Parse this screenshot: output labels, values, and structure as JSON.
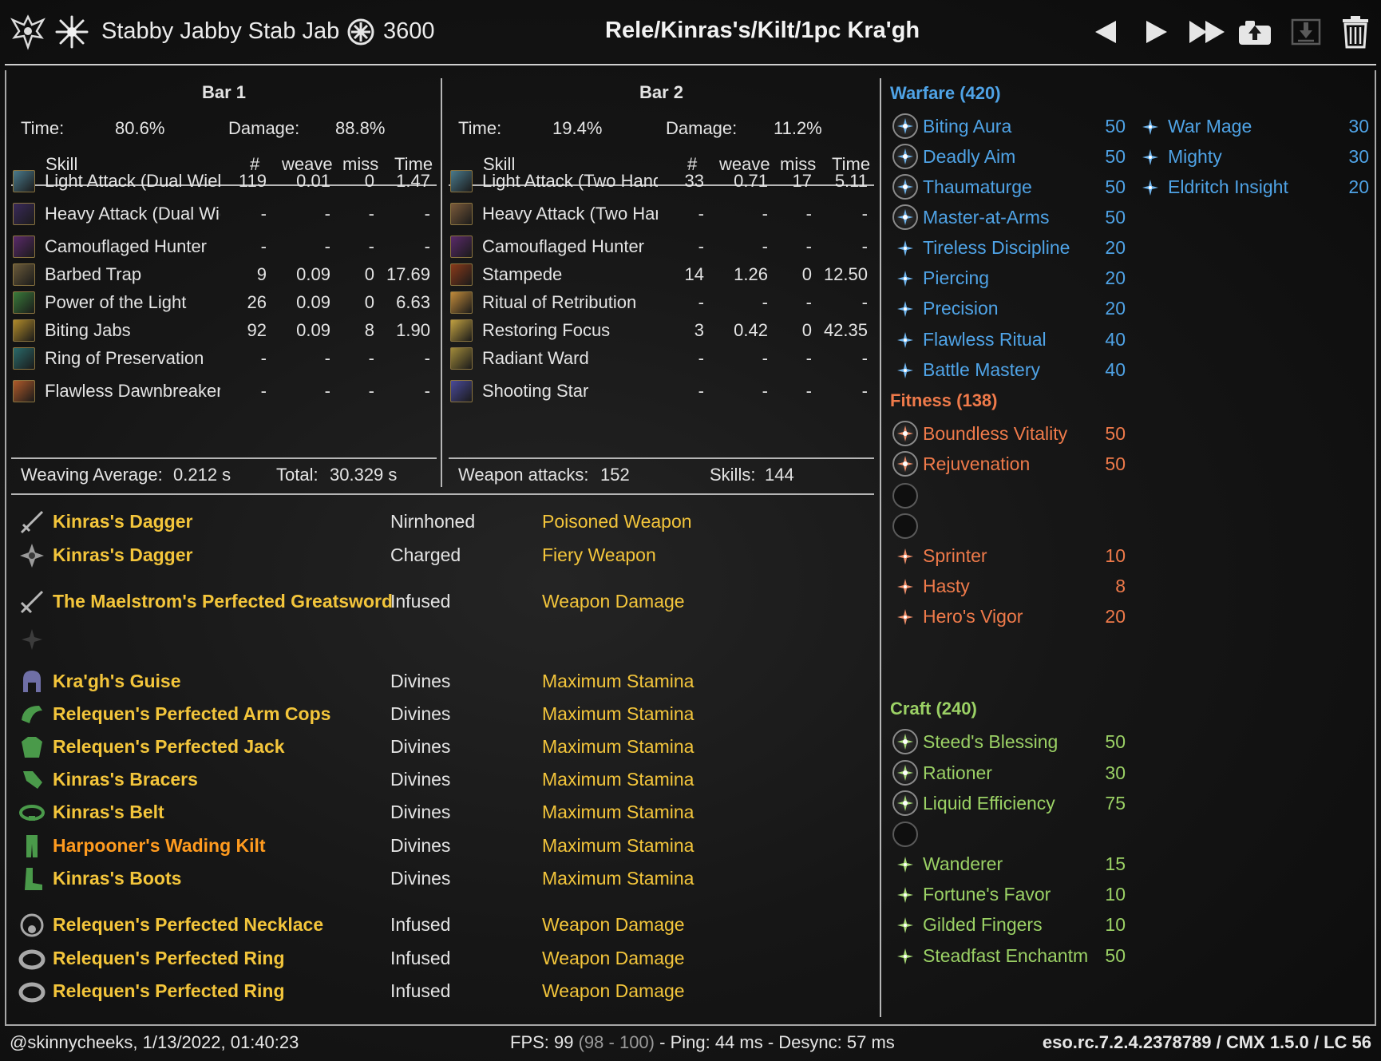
{
  "header": {
    "character_name": "Stabby Jabby Stab Jab",
    "cp_total": "3600",
    "fight_title": "Rele/Kinras's/Kilt/1pc Kra'gh",
    "icons": [
      "class-icon",
      "champion-icon",
      "champion-points-icon",
      "previous-icon",
      "next-icon",
      "last-icon",
      "save-icon",
      "load-icon",
      "delete-icon"
    ]
  },
  "bar1": {
    "title": "Bar 1",
    "time_label": "Time:",
    "time_value": "80.6%",
    "damage_label": "Damage:",
    "damage_value": "88.8%",
    "columns": [
      "Skill",
      "#",
      "weave",
      "miss",
      "Time"
    ],
    "rows": [
      {
        "skill": "Light Attack (Dual Wield",
        "count": "119",
        "weave": "0.01",
        "miss": "0",
        "time": "1.47",
        "icon": "light-attack-icon"
      },
      {
        "skill": "Heavy Attack (Dual Wie",
        "count": "-",
        "weave": "-",
        "miss": "-",
        "time": "-",
        "icon": "heavy-attack-icon"
      },
      {
        "skill": "Camouflaged Hunter",
        "count": "-",
        "weave": "-",
        "miss": "-",
        "time": "-",
        "icon": "camouflaged-hunter-icon"
      },
      {
        "skill": "Barbed Trap",
        "count": "9",
        "weave": "0.09",
        "miss": "0",
        "time": "17.69",
        "icon": "barbed-trap-icon"
      },
      {
        "skill": "Power of the Light",
        "count": "26",
        "weave": "0.09",
        "miss": "0",
        "time": "6.63",
        "icon": "power-of-the-light-icon"
      },
      {
        "skill": "Biting Jabs",
        "count": "92",
        "weave": "0.09",
        "miss": "8",
        "time": "1.90",
        "icon": "biting-jabs-icon"
      },
      {
        "skill": "Ring of Preservation",
        "count": "-",
        "weave": "-",
        "miss": "-",
        "time": "-",
        "icon": "ring-of-preservation-icon"
      },
      {
        "skill": "Flawless Dawnbreaker",
        "count": "-",
        "weave": "-",
        "miss": "-",
        "time": "-",
        "icon": "flawless-dawnbreaker-icon"
      }
    ],
    "footer_label": "Weaving Average:",
    "footer_value": "0.212 s",
    "total_label": "Total:",
    "total_value": "30.329 s"
  },
  "bar2": {
    "title": "Bar 2",
    "time_label": "Time:",
    "time_value": "19.4%",
    "damage_label": "Damage:",
    "damage_value": "11.2%",
    "columns": [
      "Skill",
      "#",
      "weave",
      "miss",
      "Time"
    ],
    "rows": [
      {
        "skill": "Light Attack (Two Hand",
        "count": "33",
        "weave": "0.71",
        "miss": "17",
        "time": "5.11",
        "icon": "light-attack-icon"
      },
      {
        "skill": "Heavy Attack (Two Han",
        "count": "-",
        "weave": "-",
        "miss": "-",
        "time": "-",
        "icon": "heavy-attack-icon"
      },
      {
        "skill": "Camouflaged Hunter",
        "count": "-",
        "weave": "-",
        "miss": "-",
        "time": "-",
        "icon": "camouflaged-hunter-icon"
      },
      {
        "skill": "Stampede",
        "count": "14",
        "weave": "1.26",
        "miss": "0",
        "time": "12.50",
        "icon": "stampede-icon"
      },
      {
        "skill": "Ritual of Retribution",
        "count": "-",
        "weave": "-",
        "miss": "-",
        "time": "-",
        "icon": "ritual-of-retribution-icon"
      },
      {
        "skill": "Restoring Focus",
        "count": "3",
        "weave": "0.42",
        "miss": "0",
        "time": "42.35",
        "icon": "restoring-focus-icon"
      },
      {
        "skill": "Radiant Ward",
        "count": "-",
        "weave": "-",
        "miss": "-",
        "time": "-",
        "icon": "radiant-ward-icon"
      },
      {
        "skill": "Shooting Star",
        "count": "-",
        "weave": "-",
        "miss": "-",
        "time": "-",
        "icon": "shooting-star-icon"
      }
    ],
    "weapon_label": "Weapon attacks:",
    "weapon_value": "152",
    "skills_label": "Skills:",
    "skills_value": "144"
  },
  "gear": [
    {
      "name": "Kinras's Dagger",
      "trait": "Nirnhoned",
      "enchant": "Poisoned Weapon",
      "icon": "dagger-icon"
    },
    {
      "name": "Kinras's Dagger",
      "trait": "Charged",
      "enchant": "Fiery Weapon",
      "icon": "poison-glyph-icon"
    },
    {
      "name": "The Maelstrom's Perfected Greatsword",
      "trait": "Infused",
      "enchant": "Weapon Damage",
      "icon": "greatsword-icon"
    },
    {
      "name": "",
      "trait": "",
      "enchant": "",
      "icon": "empty-glyph-icon"
    },
    {
      "name": "Kra'gh's Guise",
      "trait": "Divines",
      "enchant": "Maximum Stamina",
      "icon": "helmet-icon"
    },
    {
      "name": "Relequen's Perfected Arm Cops",
      "trait": "Divines",
      "enchant": "Maximum Stamina",
      "icon": "shoulders-icon"
    },
    {
      "name": "Relequen's Perfected Jack",
      "trait": "Divines",
      "enchant": "Maximum Stamina",
      "icon": "chest-icon"
    },
    {
      "name": "Kinras's Bracers",
      "trait": "Divines",
      "enchant": "Maximum Stamina",
      "icon": "gloves-icon"
    },
    {
      "name": "Kinras's Belt",
      "trait": "Divines",
      "enchant": "Maximum Stamina",
      "icon": "belt-icon"
    },
    {
      "name": "Harpooner's Wading Kilt",
      "trait": "Divines",
      "enchant": "Maximum Stamina",
      "icon": "legs-icon",
      "orange": true
    },
    {
      "name": "Kinras's Boots",
      "trait": "Divines",
      "enchant": "Maximum Stamina",
      "icon": "boots-icon"
    },
    {
      "name": "Relequen's Perfected Necklace",
      "trait": "Infused",
      "enchant": "Weapon Damage",
      "icon": "necklace-icon"
    },
    {
      "name": "Relequen's Perfected Ring",
      "trait": "Infused",
      "enchant": "Weapon Damage",
      "icon": "ring-icon"
    },
    {
      "name": "Relequen's Perfected Ring",
      "trait": "Infused",
      "enchant": "Weapon Damage",
      "icon": "ring-icon"
    }
  ],
  "champion": {
    "warfare": {
      "title": "Warfare (420)",
      "color": "#4fa3e6",
      "slotted": [
        {
          "name": "Biting Aura",
          "value": "50"
        },
        {
          "name": "Deadly Aim",
          "value": "50"
        },
        {
          "name": "Thaumaturge",
          "value": "50"
        },
        {
          "name": "Master-at-Arms",
          "value": "50"
        }
      ],
      "passive": [
        {
          "name": "Tireless Discipline",
          "value": "20"
        },
        {
          "name": "Piercing",
          "value": "20"
        },
        {
          "name": "Precision",
          "value": "20"
        },
        {
          "name": "Flawless Ritual",
          "value": "40"
        },
        {
          "name": "Battle Mastery",
          "value": "40"
        }
      ],
      "side": [
        {
          "name": "War Mage",
          "value": "30"
        },
        {
          "name": "Mighty",
          "value": "30"
        },
        {
          "name": "Eldritch Insight",
          "value": "20"
        }
      ]
    },
    "fitness": {
      "title": "Fitness (138)",
      "color": "#ef7a4a",
      "slotted": [
        {
          "name": "Boundless Vitality",
          "value": "50"
        },
        {
          "name": "Rejuvenation",
          "value": "50"
        }
      ],
      "passive": [
        {
          "name": "Sprinter",
          "value": "10"
        },
        {
          "name": "Hasty",
          "value": "8"
        },
        {
          "name": "Hero's Vigor",
          "value": "20"
        }
      ]
    },
    "craft": {
      "title": "Craft (240)",
      "color": "#9bd165",
      "slotted": [
        {
          "name": "Steed's Blessing",
          "value": "50"
        },
        {
          "name": "Rationer",
          "value": "30"
        },
        {
          "name": "Liquid Efficiency",
          "value": "75"
        }
      ],
      "passive": [
        {
          "name": "Wanderer",
          "value": "15"
        },
        {
          "name": "Fortune's Favor",
          "value": "10"
        },
        {
          "name": "Gilded Fingers",
          "value": "10"
        },
        {
          "name": "Steadfast Enchantm",
          "value": "50"
        }
      ]
    }
  },
  "footer": {
    "user_date": "@skinnycheeks, 1/13/2022, 01:40:23",
    "fps_label": "FPS: 99",
    "fps_range": "(98 - 100)",
    "ping": "- Ping: 44 ms - Desync: 57 ms",
    "version": "eso.rc.7.2.4.2378789 / CMX 1.5.0 / LC 56"
  }
}
